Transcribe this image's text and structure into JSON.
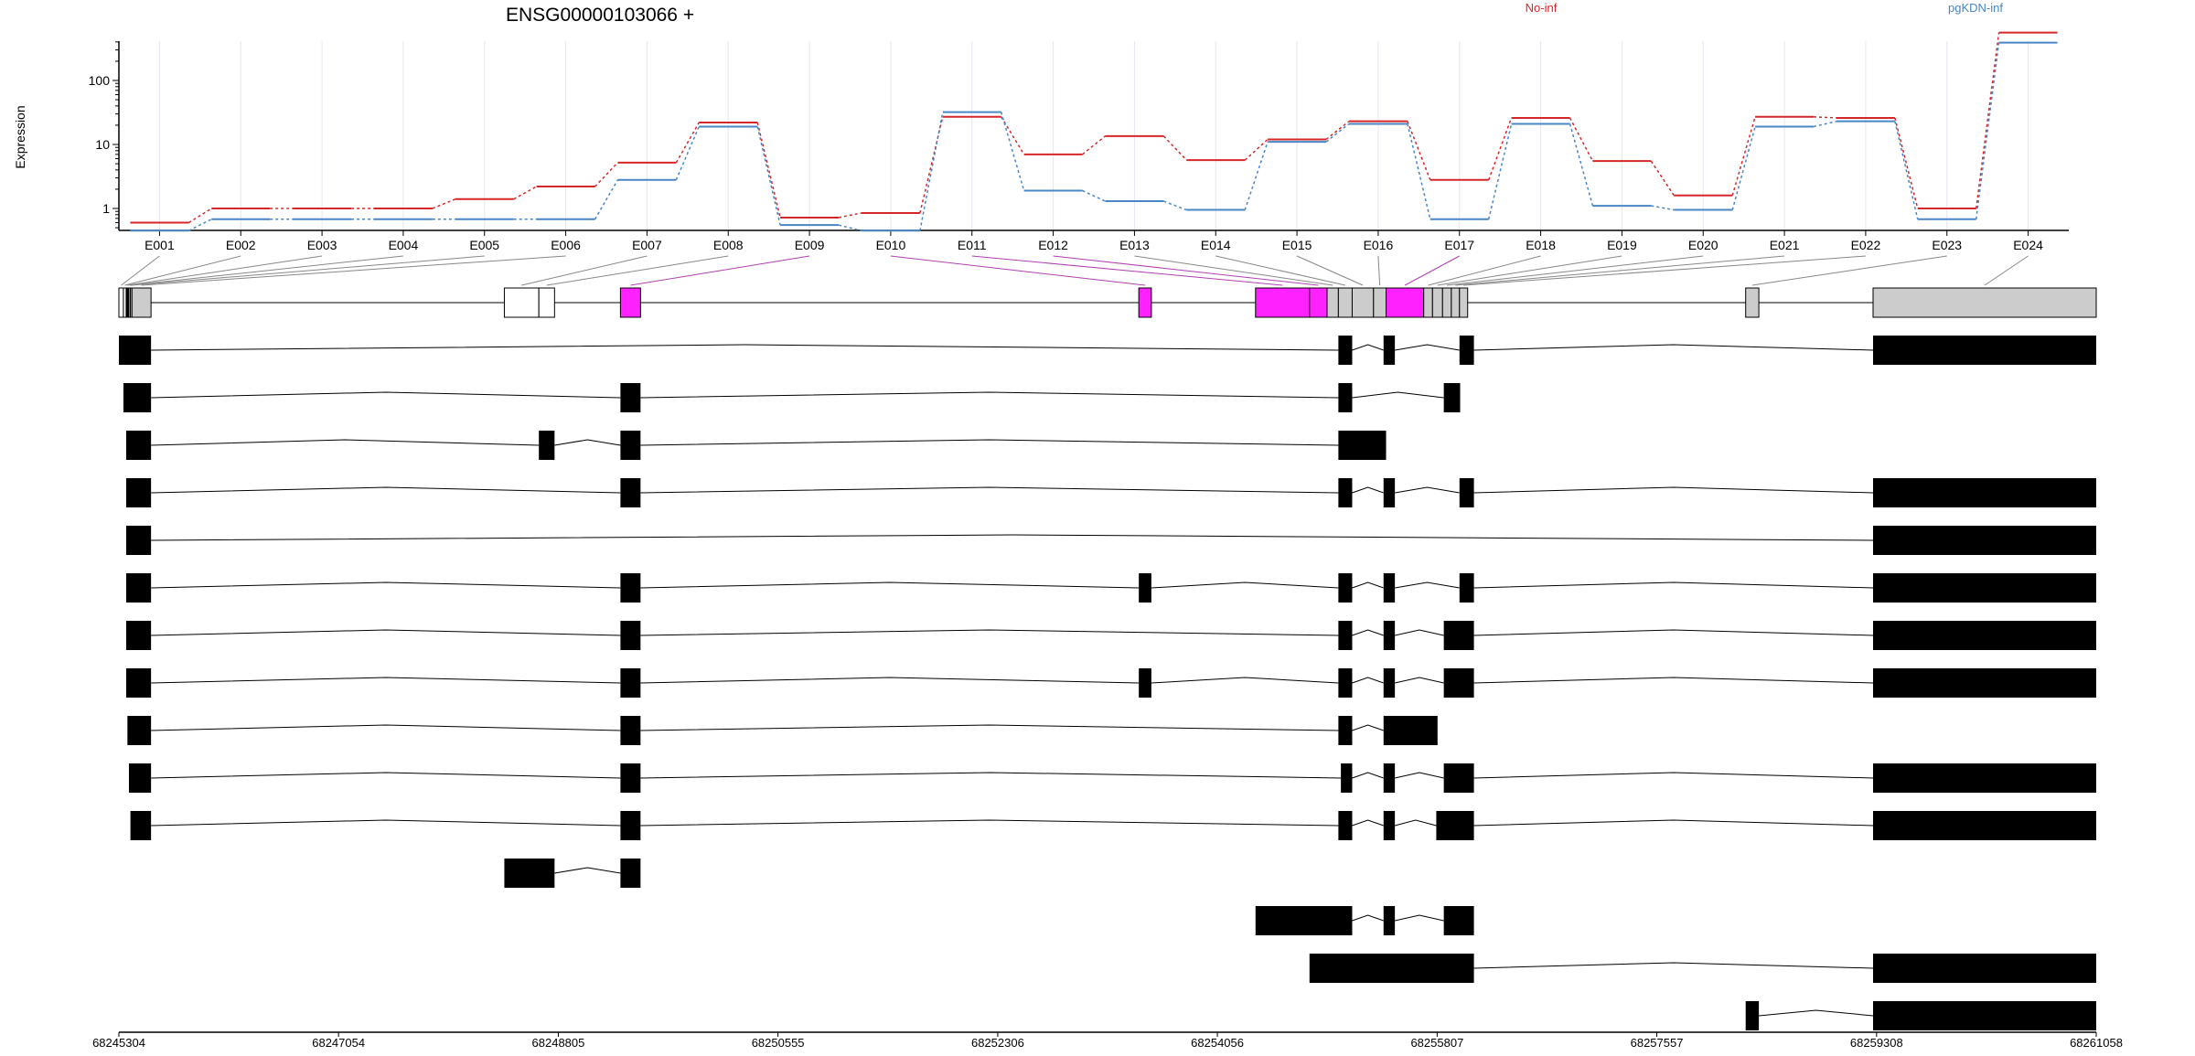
{
  "chart_data": {
    "type": "line",
    "title": "ENSG00000103066 +",
    "ylabel": "Expression",
    "yscale": "log",
    "yticks": [
      "1",
      "10",
      "100"
    ],
    "categories": [
      "E001",
      "E002",
      "E003",
      "E004",
      "E005",
      "E006",
      "E007",
      "E008",
      "E009",
      "E010",
      "E011",
      "E012",
      "E013",
      "E014",
      "E015",
      "E016",
      "E017",
      "E018",
      "E019",
      "E020",
      "E021",
      "E022",
      "E023",
      "E024"
    ],
    "series": [
      {
        "name": "No-inf",
        "color": "#d62728",
        "values": [
          0.6,
          1.0,
          1.0,
          1.0,
          1.4,
          2.2,
          5.2,
          22,
          0.72,
          0.85,
          27,
          7.0,
          13.5,
          5.7,
          12,
          23,
          2.8,
          26,
          5.5,
          1.6,
          27,
          26,
          1.0,
          560
        ]
      },
      {
        "name": "pgKDN-inf",
        "color": "#4a86c5",
        "values": [
          0.45,
          0.68,
          0.68,
          0.68,
          0.68,
          0.68,
          2.8,
          19,
          0.55,
          0.45,
          32,
          1.9,
          1.3,
          0.95,
          11,
          21,
          0.68,
          21,
          1.1,
          0.95,
          19,
          23,
          0.68,
          390
        ]
      }
    ],
    "genomic_ticks": [
      "68245304",
      "68247054",
      "68248805",
      "68250555",
      "68252306",
      "68254056",
      "68255807",
      "68257557",
      "68259308",
      "68261058"
    ],
    "genome_range": [
      68245304,
      68261058
    ],
    "exons": [
      {
        "id": "E001",
        "start": 68245304,
        "end": 68245340,
        "fill": "#ffffff"
      },
      {
        "id": "E002",
        "start": 68245340,
        "end": 68245362,
        "fill": "#ffffff"
      },
      {
        "id": "E003",
        "start": 68245362,
        "end": 68245384,
        "fill": "#000000"
      },
      {
        "id": "E004",
        "start": 68245384,
        "end": 68245396,
        "fill": "#ffffff"
      },
      {
        "id": "E005",
        "start": 68245396,
        "end": 68245408,
        "fill": "#ffffff"
      },
      {
        "id": "E006",
        "start": 68245408,
        "end": 68245560,
        "fill": "#cccccc"
      },
      {
        "id": "E007",
        "start": 68248375,
        "end": 68248650,
        "fill": "#ffffff"
      },
      {
        "id": "E008",
        "start": 68248650,
        "end": 68248775,
        "fill": "#ffffff"
      },
      {
        "id": "E009",
        "start": 68249300,
        "end": 68249460,
        "fill": "#ff22ff"
      },
      {
        "id": "E010",
        "start": 68253430,
        "end": 68253530,
        "fill": "#ff22ff"
      },
      {
        "id": "E011",
        "start": 68254360,
        "end": 68254790,
        "fill": "#ff22ff"
      },
      {
        "id": "E012",
        "start": 68254790,
        "end": 68254930,
        "fill": "#ff22ff"
      },
      {
        "id": "E013",
        "start": 68254930,
        "end": 68255020,
        "fill": "#cccccc"
      },
      {
        "id": "E014",
        "start": 68255020,
        "end": 68255130,
        "fill": "#cccccc"
      },
      {
        "id": "E015",
        "start": 68255130,
        "end": 68255300,
        "fill": "#cccccc"
      },
      {
        "id": "E016",
        "start": 68255300,
        "end": 68255400,
        "fill": "#cccccc"
      },
      {
        "id": "E017",
        "start": 68255400,
        "end": 68255700,
        "fill": "#ff22ff"
      },
      {
        "id": "E018",
        "start": 68255700,
        "end": 68255770,
        "fill": "#cccccc"
      },
      {
        "id": "E019",
        "start": 68255770,
        "end": 68255850,
        "fill": "#cccccc"
      },
      {
        "id": "E020",
        "start": 68255850,
        "end": 68255920,
        "fill": "#cccccc"
      },
      {
        "id": "E021",
        "start": 68255920,
        "end": 68255985,
        "fill": "#cccccc"
      },
      {
        "id": "E022",
        "start": 68255985,
        "end": 68256050,
        "fill": "#cccccc"
      },
      {
        "id": "E023",
        "start": 68258265,
        "end": 68258370,
        "fill": "#cccccc"
      },
      {
        "id": "E024",
        "start": 68259280,
        "end": 68261058,
        "fill": "#cccccc"
      }
    ],
    "transcripts": [
      [
        [
          68245304,
          68245560
        ],
        [
          68255020,
          68255130
        ],
        [
          68255380,
          68255470
        ],
        [
          68255985,
          68256100
        ],
        [
          68259280,
          68261058
        ]
      ],
      [
        [
          68245340,
          68245560
        ],
        [
          68249300,
          68249460
        ],
        [
          68255020,
          68255130
        ],
        [
          68255860,
          68255990
        ]
      ],
      [
        [
          68245362,
          68245560
        ],
        [
          68248650,
          68248775
        ],
        [
          68249300,
          68249460
        ],
        [
          68255020,
          68255400
        ]
      ],
      [
        [
          68245362,
          68245560
        ],
        [
          68249300,
          68249460
        ],
        [
          68255020,
          68255130
        ],
        [
          68255380,
          68255470
        ],
        [
          68255985,
          68256100
        ],
        [
          68259280,
          68261058
        ]
      ],
      [
        [
          68245362,
          68245560
        ],
        [
          68259280,
          68261058
        ]
      ],
      [
        [
          68245362,
          68245560
        ],
        [
          68249300,
          68249460
        ],
        [
          68253430,
          68253530
        ],
        [
          68255020,
          68255130
        ],
        [
          68255380,
          68255470
        ],
        [
          68255985,
          68256100
        ],
        [
          68259280,
          68261058
        ]
      ],
      [
        [
          68245362,
          68245560
        ],
        [
          68249300,
          68249460
        ],
        [
          68255020,
          68255130
        ],
        [
          68255380,
          68255470
        ],
        [
          68255860,
          68256100
        ],
        [
          68259280,
          68261058
        ]
      ],
      [
        [
          68245362,
          68245560
        ],
        [
          68249300,
          68249460
        ],
        [
          68253430,
          68253530
        ],
        [
          68255020,
          68255130
        ],
        [
          68255380,
          68255470
        ],
        [
          68255860,
          68256100
        ],
        [
          68259280,
          68261058
        ]
      ],
      [
        [
          68245372,
          68245560
        ],
        [
          68249300,
          68249460
        ],
        [
          68255020,
          68255130
        ],
        [
          68255380,
          68255810
        ]
      ],
      [
        [
          68245384,
          68245560
        ],
        [
          68249300,
          68249460
        ],
        [
          68255040,
          68255130
        ],
        [
          68255380,
          68255470
        ],
        [
          68255860,
          68256100
        ],
        [
          68259280,
          68261058
        ]
      ],
      [
        [
          68245396,
          68245560
        ],
        [
          68249300,
          68249460
        ],
        [
          68255020,
          68255130
        ],
        [
          68255380,
          68255470
        ],
        [
          68255800,
          68256100
        ],
        [
          68259280,
          68261058
        ]
      ],
      [
        [
          68248375,
          68248775
        ],
        [
          68249300,
          68249460
        ]
      ],
      [
        [
          68254360,
          68255130
        ],
        [
          68255380,
          68255470
        ],
        [
          68255860,
          68256100
        ]
      ],
      [
        [
          68254790,
          68256100
        ],
        [
          68259280,
          68261058
        ]
      ],
      [
        [
          68258265,
          68258370
        ],
        [
          68259280,
          68261058
        ]
      ]
    ]
  }
}
